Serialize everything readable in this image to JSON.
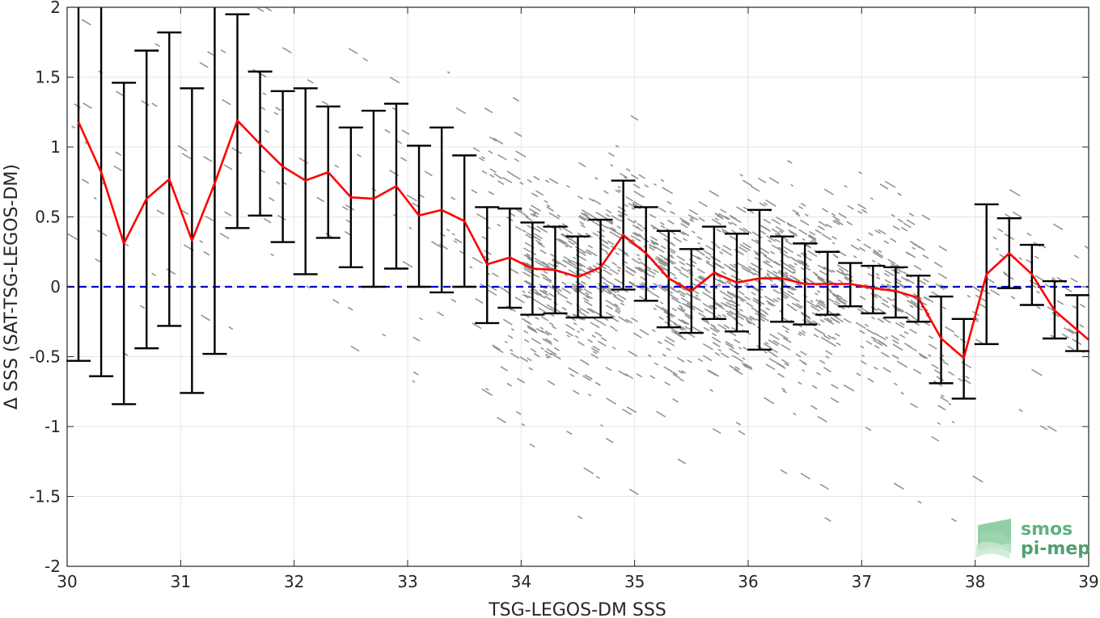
{
  "chart_data": {
    "type": "scatter",
    "title": "",
    "xlabel": "TSG-LEGOS-DM SSS",
    "ylabel": "Δ SSS (SAT-TSG-LEGOS-DM)",
    "xlim": [
      30,
      39
    ],
    "ylim": [
      -2,
      2
    ],
    "xticks": [
      30,
      31,
      32,
      33,
      34,
      35,
      36,
      37,
      38,
      39
    ],
    "yticks": [
      -2,
      -1.5,
      -1,
      -0.5,
      0,
      0.5,
      1,
      1.5,
      2
    ],
    "xtick_labels": [
      "30",
      "31",
      "32",
      "33",
      "34",
      "35",
      "36",
      "37",
      "38",
      "39"
    ],
    "ytick_labels": [
      "-2",
      "-1.5",
      "-1",
      "-0.5",
      "0",
      "0.5",
      "1",
      "1.5",
      "2"
    ],
    "grid": true,
    "zero_line": {
      "y": 0,
      "color": "#0000cc",
      "style": "dashed"
    },
    "scatter_color": "#808080",
    "mean_color": "#ff0000",
    "errorbar_color": "#000000",
    "series": [
      {
        "type": "errorbar-line",
        "x": [
          30.1,
          30.3,
          30.5,
          30.7,
          30.9,
          31.1,
          31.3,
          31.5,
          31.7,
          31.9,
          32.1,
          32.3,
          32.5,
          32.7,
          32.9,
          33.1,
          33.3,
          33.5,
          33.7,
          33.9,
          34.1,
          34.3,
          34.5,
          34.7,
          34.9,
          35.1,
          35.3,
          35.5,
          35.7,
          35.9,
          36.1,
          36.3,
          36.5,
          36.7,
          36.9,
          37.1,
          37.3,
          37.5,
          37.7,
          37.9,
          38.1,
          38.3,
          38.5,
          38.7,
          38.9
        ],
        "mean": [
          1.18,
          0.82,
          0.31,
          0.63,
          0.77,
          0.33,
          0.74,
          1.19,
          1.02,
          0.86,
          0.76,
          0.82,
          0.64,
          0.63,
          0.72,
          0.51,
          0.55,
          0.47,
          0.16,
          0.21,
          0.13,
          0.12,
          0.07,
          0.14,
          0.37,
          0.24,
          0.06,
          -0.03,
          0.1,
          0.03,
          0.06,
          0.06,
          0.02,
          0.02,
          0.02,
          -0.01,
          -0.03,
          -0.08,
          -0.37,
          -0.51,
          0.09,
          0.24,
          0.09,
          -0.17,
          -0.31
        ],
        "upper": [
          2.0,
          2.0,
          1.46,
          1.69,
          1.82,
          1.42,
          2.0,
          1.95,
          1.54,
          1.4,
          1.42,
          1.29,
          1.14,
          1.26,
          1.31,
          1.01,
          1.14,
          0.94,
          0.57,
          0.56,
          0.46,
          0.43,
          0.36,
          0.48,
          0.76,
          0.57,
          0.4,
          0.27,
          0.43,
          0.38,
          0.55,
          0.36,
          0.31,
          0.25,
          0.17,
          0.15,
          0.14,
          0.08,
          -0.07,
          -0.23,
          0.59,
          0.49,
          0.3,
          0.04,
          -0.06
        ],
        "lower": [
          -0.53,
          -0.64,
          -0.84,
          -0.44,
          -0.28,
          -0.76,
          -0.48,
          0.42,
          0.51,
          0.32,
          0.09,
          0.35,
          0.14,
          0.0,
          0.13,
          0.0,
          -0.04,
          0.0,
          -0.26,
          -0.15,
          -0.2,
          -0.19,
          -0.22,
          -0.22,
          -0.02,
          -0.1,
          -0.29,
          -0.33,
          -0.23,
          -0.32,
          -0.45,
          -0.25,
          -0.27,
          -0.2,
          -0.14,
          -0.19,
          -0.22,
          -0.25,
          -0.69,
          -0.8,
          -0.41,
          -0.01,
          -0.13,
          -0.37,
          -0.46
        ]
      }
    ]
  },
  "logo": {
    "line1": "smos",
    "line2": "pi-mep"
  }
}
